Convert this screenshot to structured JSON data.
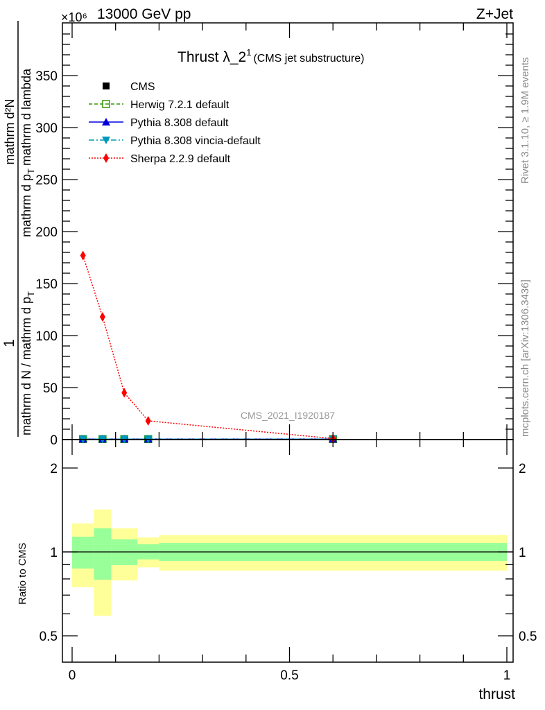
{
  "header": {
    "left": "13000 GeV pp",
    "right": "Z+Jet",
    "exponent": "×10⁶"
  },
  "side_text": {
    "rivet": "Rivet 3.1.10, ≥ 1.9M events",
    "mcplots": "mcplots.cern.ch [arXiv:1306.3436]"
  },
  "watermark": "CMS_2021_I1920187",
  "chart_data": [
    {
      "type": "line",
      "title": "Thrust λ_2",
      "title_sup": "1",
      "subtitle": "(CMS jet substructure)",
      "ylabel_parts": {
        "one": "1",
        "outer_den": "mathrm d N / mathrm d p",
        "outer_den_sub": "T",
        "inner_num": "mathrm d²N",
        "inner_den": "mathrm d p",
        "inner_den_sub": "T",
        "inner_den_tail": "mathrm d lambda"
      },
      "xlim": [
        0,
        1
      ],
      "ylim": [
        0,
        390
      ],
      "y_scale_note": "×10⁶",
      "yticks": [
        0,
        50,
        100,
        150,
        200,
        250,
        300,
        350
      ],
      "ytick_labels": [
        "0",
        "50",
        "100",
        "150",
        "200",
        "250",
        "300",
        "350"
      ],
      "legend_placement": "top-left",
      "series": [
        {
          "name": "CMS",
          "color": "#000000",
          "marker": "square",
          "x": [
            0.025,
            0.07,
            0.12,
            0.175,
            0.6
          ],
          "y": [
            0.5,
            0.5,
            0.5,
            0.5,
            0.5
          ]
        },
        {
          "name": "Herwig 7.2.1 default",
          "color": "#339900",
          "marker": "open-square",
          "line": "dashed",
          "x": [
            0.025,
            0.07,
            0.12,
            0.175,
            0.6
          ],
          "y": [
            0.5,
            0.5,
            0.5,
            0.5,
            0.5
          ]
        },
        {
          "name": "Pythia 8.308 default",
          "color": "#0000dd",
          "marker": "triangle-up",
          "line": "solid",
          "x": [
            0.025,
            0.07,
            0.12,
            0.175,
            0.6
          ],
          "y": [
            0.5,
            0.5,
            0.5,
            0.5,
            0.5
          ]
        },
        {
          "name": "Pythia 8.308 vincia-default",
          "color": "#0099bb",
          "marker": "triangle-down",
          "line": "dashdot",
          "x": [
            0.025,
            0.07,
            0.12,
            0.175,
            0.6
          ],
          "y": [
            0.5,
            0.5,
            0.5,
            0.5,
            0.5
          ]
        },
        {
          "name": "Sherpa 2.2.9 default",
          "color": "#ff0000",
          "marker": "diamond",
          "line": "dotted",
          "x": [
            0.025,
            0.07,
            0.12,
            0.175,
            0.6
          ],
          "y": [
            177,
            118,
            45,
            18,
            1
          ]
        }
      ]
    },
    {
      "type": "area",
      "ylabel": "Ratio to CMS",
      "xlabel": "thrust",
      "yscale": "log",
      "ylim": [
        0.4,
        2.5
      ],
      "yticks": [
        0.5,
        1,
        2
      ],
      "ytick_labels": [
        "0.5",
        "1",
        "2"
      ],
      "xticks": [
        0,
        0.5,
        1
      ],
      "xtick_labels": [
        "0",
        "0.5",
        "1"
      ],
      "bin_edges": [
        0,
        0.05,
        0.09,
        0.15,
        0.2,
        1.0
      ],
      "band_outer": {
        "color": "#ffff99",
        "up": [
          1.265,
          1.42,
          1.215,
          1.127,
          1.15
        ],
        "down": [
          0.747,
          0.59,
          0.79,
          0.88,
          0.857
        ]
      },
      "band_inner": {
        "color": "#99ff99",
        "up": [
          1.134,
          1.215,
          1.11,
          1.065,
          1.077
        ],
        "down": [
          0.872,
          0.795,
          0.897,
          0.94,
          0.928
        ]
      }
    }
  ]
}
